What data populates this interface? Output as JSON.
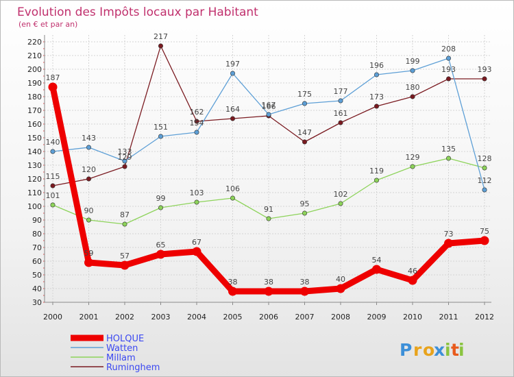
{
  "chart_data": {
    "type": "line",
    "title": "Evolution des Impôts locaux par Habitant",
    "subtitle": "(en € et par an)",
    "xlabel": "",
    "ylabel": "",
    "ylim": [
      30,
      220
    ],
    "y_step": 10,
    "grid": true,
    "legend_position": "bottom-left",
    "x": [
      "2000",
      "2001",
      "2002",
      "2003",
      "2004",
      "2005",
      "2006",
      "2007",
      "2008",
      "2009",
      "2010",
      "2011",
      "2012"
    ],
    "series": [
      {
        "name": "Ruminghem",
        "color": "#7a1a20",
        "values": [
          115,
          120,
          129,
          217,
          162,
          164,
          166,
          147,
          161,
          173,
          180,
          193,
          193
        ],
        "labels": [
          "115",
          "120",
          "129",
          "217",
          "162",
          "164",
          "166",
          "147",
          "161",
          "173",
          "180",
          "193",
          "193"
        ]
      },
      {
        "name": "Millam",
        "color": "#8dd35a",
        "values": [
          101,
          90,
          87,
          99,
          103,
          106,
          91,
          95,
          102,
          119,
          129,
          135,
          128
        ],
        "labels": [
          "101",
          "90",
          "87",
          "99",
          "103",
          "106",
          "91",
          "95",
          "102",
          "119",
          "129",
          "135",
          "128"
        ]
      },
      {
        "name": "Watten",
        "color": "#5d9fd6",
        "values": [
          140,
          143,
          133,
          151,
          154,
          197,
          167,
          175,
          177,
          196,
          199,
          208,
          112
        ],
        "labels": [
          "140",
          "143",
          "133",
          "151",
          "154",
          "197",
          "167",
          "175",
          "177",
          "196",
          "199",
          "208",
          "112"
        ]
      },
      {
        "name": "HOLQUE",
        "color": "#ee0000",
        "values": [
          187,
          59,
          57,
          65,
          67,
          38,
          38,
          38,
          40,
          54,
          46,
          73,
          75
        ],
        "labels": [
          "187",
          "59",
          "57",
          "65",
          "67",
          "38",
          "38",
          "38",
          "40",
          "54",
          "46",
          "73",
          "75"
        ]
      }
    ],
    "legend": [
      "HOLQUE",
      "Watten",
      "Millam",
      "Ruminghem"
    ]
  },
  "brand": {
    "logo_text": "Proxiti",
    "letters": [
      "P",
      "r",
      "o",
      "x",
      "i",
      "t",
      "i"
    ],
    "colors": [
      "#3c8fd8",
      "#e8a31c",
      "#e8a31c",
      "#3c8fd8",
      "#8ac440",
      "#e85a1c",
      "#8ac440"
    ]
  }
}
